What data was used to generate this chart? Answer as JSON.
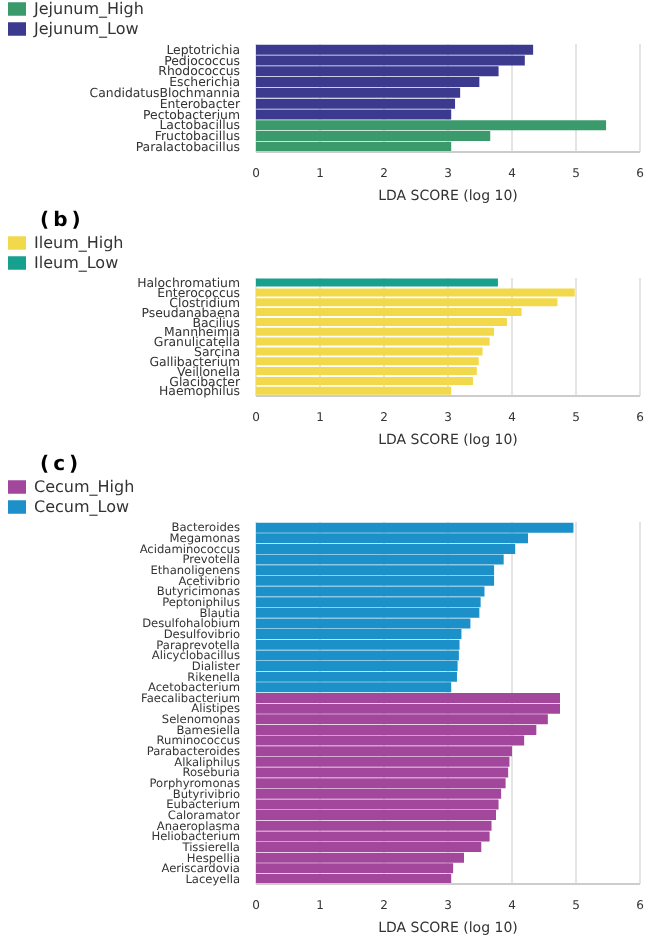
{
  "chart_data": [
    {
      "type": "bar",
      "orientation": "horizontal",
      "stacked": true,
      "xlabel": "LDA SCORE (log 10)",
      "categories": [
        "Leptotrichia",
        "Pediococcus",
        "Rhodococcus",
        "Escherichia",
        "CandidatusBlochmannia",
        "Enterobacter",
        "Pectobacterium",
        "Lactobacillus",
        "Fructobacillus",
        "Paralactobacillus"
      ],
      "series": [
        {
          "name": "Jejunum_High",
          "color": "#3a9a6c",
          "values": [
            null,
            null,
            null,
            null,
            null,
            null,
            null,
            5.47,
            3.66,
            3.05
          ]
        },
        {
          "name": "Jejunum_Low",
          "color": "#3b3a8f",
          "values": [
            4.33,
            4.2,
            3.79,
            3.49,
            3.19,
            3.11,
            3.05,
            null,
            null,
            null
          ]
        }
      ],
      "xlim": [
        0,
        6
      ],
      "xticks": [
        0,
        1,
        2,
        3,
        4,
        5,
        6
      ],
      "grid": "x",
      "legend": "top left"
    },
    {
      "type": "bar",
      "orientation": "horizontal",
      "stacked": true,
      "title": "(b)",
      "xlabel": "LDA SCORE (log 10)",
      "categories": [
        "Halochromatium",
        "Enterococcus",
        "Clostridium",
        "Pseudanabaena",
        "Bacilius",
        "Mannheimia",
        "Granulicatella",
        "Sarcina",
        "Gallibacterium",
        "Veillonella",
        "Glacibacter",
        "Haemophilus"
      ],
      "series": [
        {
          "name": "Ileum_High",
          "color": "#f2d94c",
          "values": [
            null,
            4.98,
            4.71,
            4.15,
            3.92,
            3.72,
            3.65,
            3.54,
            3.48,
            3.45,
            3.39,
            3.05
          ]
        },
        {
          "name": "Ileum_Low",
          "color": "#18a08f",
          "values": [
            3.78,
            null,
            null,
            null,
            null,
            null,
            null,
            null,
            null,
            null,
            null,
            null
          ]
        }
      ],
      "xlim": [
        0,
        6
      ],
      "xticks": [
        0,
        1,
        2,
        3,
        4,
        5,
        6
      ],
      "grid": "x",
      "legend": "top left"
    },
    {
      "type": "bar",
      "orientation": "horizontal",
      "stacked": true,
      "title": "(c)",
      "xlabel": "LDA SCORE (log 10)",
      "categories": [
        "Bacteroides",
        "Megamonas",
        "Acidaminococcus",
        "Prevotella",
        "Ethanoligenens",
        "Acetivibrio",
        "Butyricimonas",
        "Peptoniphilus",
        "Blautia",
        "Desulfohalobium",
        "Desulfovibrio",
        "Paraprevotella",
        "Alicyclobacillus",
        "Dialister",
        "Rikenella",
        "Acetobacterium",
        "Faecalibacterium",
        "Alistipes",
        "Selenomonas",
        "Bamesiella",
        "Ruminococcus",
        "Parabacteroides",
        "Alkaliphilus",
        "Roseburia",
        "Porphyromonas",
        "Butyrivibrio",
        "Eubacterium",
        "Caloramator",
        "Anaeroplasma",
        "Heliobacterium",
        "Tissierella",
        "Hespellia",
        "Aeriscardovia",
        "Laceyella"
      ],
      "series": [
        {
          "name": "Cecum_High",
          "color": "#a2479c",
          "values": [
            null,
            null,
            null,
            null,
            null,
            null,
            null,
            null,
            null,
            null,
            null,
            null,
            null,
            null,
            null,
            null,
            4.75,
            4.75,
            4.56,
            4.38,
            4.19,
            4.0,
            3.96,
            3.94,
            3.9,
            3.83,
            3.79,
            3.75,
            3.68,
            3.65,
            3.52,
            3.25,
            3.08,
            3.05
          ]
        },
        {
          "name": "Cecum_Low",
          "color": "#1b90c9",
          "values": [
            4.96,
            4.25,
            4.05,
            3.87,
            3.72,
            3.72,
            3.57,
            3.51,
            3.49,
            3.35,
            3.21,
            3.18,
            3.17,
            3.15,
            3.14,
            3.05,
            null,
            null,
            null,
            null,
            null,
            null,
            null,
            null,
            null,
            null,
            null,
            null,
            null,
            null,
            null,
            null,
            null,
            null
          ]
        }
      ],
      "xlim": [
        0,
        6
      ],
      "xticks": [
        0,
        1,
        2,
        3,
        4,
        5,
        6
      ],
      "grid": "x",
      "legend": "top left"
    }
  ]
}
